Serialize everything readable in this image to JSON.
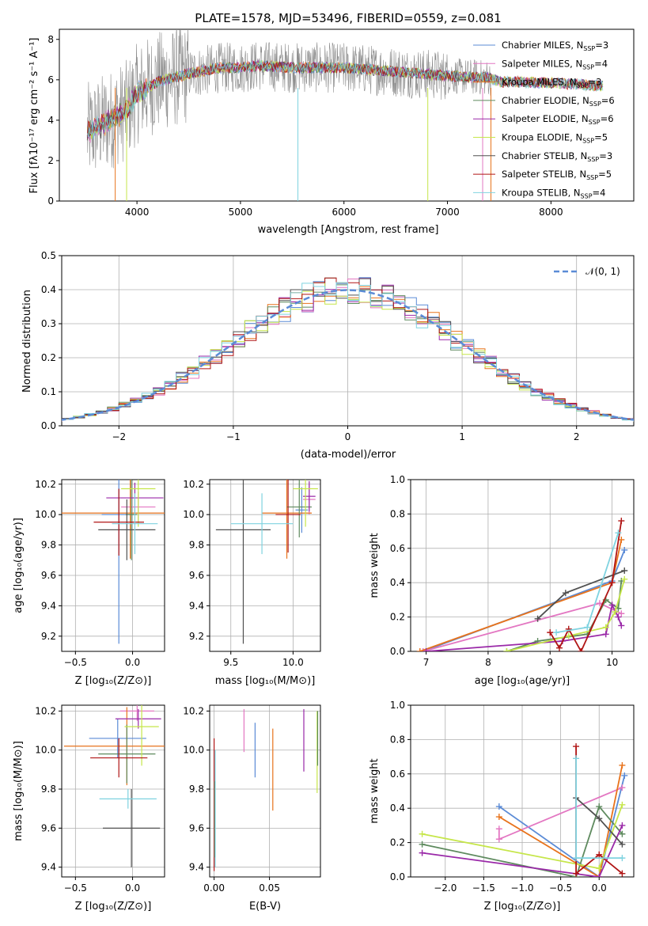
{
  "colors": {
    "chabrier_miles": "#5b8bd6",
    "salpeter_miles": "#e377c2",
    "kroupa_miles": "#e8731c",
    "chabrier_elodie": "#5e8a5e",
    "salpeter_elodie": "#9a29a8",
    "kroupa_elodie": "#c6e64a",
    "chabrier_stelib": "#505050",
    "salpeter_stelib": "#b01515",
    "kroupa_stelib": "#7fd3e0",
    "model_gray": "#8c8c8c",
    "gauss": "#5b8bd6"
  },
  "legend": [
    {
      "label": "Chabrier MILES, N",
      "sub": "SSP",
      "tail": "=3",
      "color": "#5b8bd6"
    },
    {
      "label": "Salpeter MILES, N",
      "sub": "SSP",
      "tail": "=4",
      "color": "#e377c2"
    },
    {
      "label": "Kroupa MILES, N",
      "sub": "SSP",
      "tail": "=3",
      "color": "#e8731c"
    },
    {
      "label": "Chabrier ELODIE, N",
      "sub": "SSP",
      "tail": "=6",
      "color": "#5e8a5e"
    },
    {
      "label": "Salpeter ELODIE, N",
      "sub": "SSP",
      "tail": "=6",
      "color": "#9a29a8"
    },
    {
      "label": "Kroupa ELODIE, N",
      "sub": "SSP",
      "tail": "=5",
      "color": "#c6e64a"
    },
    {
      "label": "Chabrier STELIB, N",
      "sub": "SSP",
      "tail": "=3",
      "color": "#505050"
    },
    {
      "label": "Salpeter STELIB, N",
      "sub": "SSP",
      "tail": "=5",
      "color": "#b01515"
    },
    {
      "label": "Kroupa STELIB, N",
      "sub": "SSP",
      "tail": "=4",
      "color": "#7fd3e0"
    }
  ],
  "chart_data": [
    {
      "type": "line",
      "title": "PLATE=1578, MJD=53496, FIBERID=0559, z=0.081",
      "xlabel": "wavelength [Angstrom, rest frame]",
      "ylabel": "Flux [fλ10⁻¹⁷ erg cm⁻² s⁻¹ A⁻¹]",
      "xlim": [
        3250,
        8800
      ],
      "ylim": [
        0,
        8.5
      ],
      "xticks": [
        "4000",
        "5000",
        "6000",
        "7000",
        "8000"
      ],
      "yticks": [
        "0",
        "2",
        "4",
        "6",
        "8"
      ],
      "continuum": [
        [
          3500,
          3.3
        ],
        [
          3700,
          3.9
        ],
        [
          3900,
          4.5
        ],
        [
          4000,
          5.3
        ],
        [
          4200,
          5.9
        ],
        [
          4500,
          6.3
        ],
        [
          4800,
          6.6
        ],
        [
          5000,
          6.6
        ],
        [
          5200,
          6.7
        ],
        [
          5500,
          6.6
        ],
        [
          6000,
          6.6
        ],
        [
          6500,
          6.4
        ],
        [
          7000,
          6.2
        ],
        [
          7400,
          6.1
        ],
        [
          7500,
          5.9
        ],
        [
          8000,
          5.85
        ],
        [
          8500,
          5.7
        ]
      ],
      "legend_position": "top-right"
    },
    {
      "type": "bar",
      "xlabel": "(data-model)/error",
      "ylabel": "Normed distribution",
      "xlim": [
        -2.5,
        2.5
      ],
      "ylim": [
        0,
        0.5
      ],
      "xticks": [
        "−2",
        "−1",
        "0",
        "1",
        "2"
      ],
      "yticks": [
        "0.0",
        "0.1",
        "0.2",
        "0.3",
        "0.4",
        "0.5"
      ],
      "legend_label": "𝒩(0, 1)",
      "legend_position": "top-right",
      "gaussian": {
        "mean": 0,
        "sigma": 1
      }
    },
    {
      "type": "scatter",
      "xlabel": "Z [log₁₀(Z/Z⊙)]",
      "ylabel": "age  [log₁₀(age/yr)]",
      "xlim": [
        -0.62,
        0.28
      ],
      "ylim": [
        9.1,
        10.23
      ],
      "xticks": [
        "−0.5",
        "0.0"
      ],
      "xtickvals": [
        -0.5,
        0.0
      ],
      "yticks": [
        "9.2",
        "9.4",
        "9.6",
        "9.8",
        "10.0",
        "10.2"
      ],
      "points": [
        {
          "x": -0.12,
          "y": 10.0,
          "xerr": 0.15,
          "yerr": 0.85,
          "c": "#5b8bd6"
        },
        {
          "x": 0.05,
          "y": 10.05,
          "xerr": 0.15,
          "yerr": 0.1,
          "c": "#e377c2"
        },
        {
          "x": -0.02,
          "y": 10.01,
          "xerr": 0.6,
          "yerr": 0.3,
          "c": "#e8731c"
        },
        {
          "x": -0.01,
          "y": 10.0,
          "xerr": 0.05,
          "yerr": 0.3,
          "c": "#5e8a5e"
        },
        {
          "x": 0.02,
          "y": 10.11,
          "xerr": 0.25,
          "yerr": 0.1,
          "c": "#9a29a8"
        },
        {
          "x": 0.05,
          "y": 10.17,
          "xerr": 0.15,
          "yerr": 0.25,
          "c": "#c6e64a"
        },
        {
          "x": -0.05,
          "y": 9.9,
          "xerr": 0.25,
          "yerr": 0.2,
          "c": "#505050"
        },
        {
          "x": -0.12,
          "y": 9.95,
          "xerr": 0.22,
          "yerr": 0.22,
          "c": "#b01515"
        },
        {
          "x": 0.02,
          "y": 9.94,
          "xerr": 0.2,
          "yerr": 0.2,
          "c": "#7fd3e0"
        }
      ]
    },
    {
      "type": "scatter",
      "xlabel": "mass [log₁₀(M/M⊙)]",
      "ylabel": "",
      "xlim": [
        9.33,
        10.22
      ],
      "ylim": [
        9.1,
        10.23
      ],
      "xticks": [
        "9.5",
        "10.0"
      ],
      "xtickvals": [
        9.5,
        10.0
      ],
      "yticks": [
        "9.2",
        "9.4",
        "9.6",
        "9.8",
        "10.0",
        "10.2"
      ],
      "points": [
        {
          "x": 10.07,
          "y": 10.03,
          "xerr": 0.05,
          "yerr": 0.15,
          "c": "#5b8bd6"
        },
        {
          "x": 10.13,
          "y": 10.1,
          "xerr": 0.05,
          "yerr": 0.1,
          "c": "#e377c2"
        },
        {
          "x": 9.95,
          "y": 10.01,
          "xerr": 0.2,
          "yerr": 0.3,
          "c": "#e8731c"
        },
        {
          "x": 10.05,
          "y": 10.05,
          "xerr": 0.1,
          "yerr": 0.2,
          "c": "#5e8a5e"
        },
        {
          "x": 10.13,
          "y": 10.12,
          "xerr": 0.05,
          "yerr": 0.1,
          "c": "#9a29a8"
        },
        {
          "x": 10.1,
          "y": 10.17,
          "xerr": 0.1,
          "yerr": 0.25,
          "c": "#c6e64a"
        },
        {
          "x": 9.6,
          "y": 9.9,
          "xerr": 0.22,
          "yerr": 0.75,
          "c": "#505050"
        },
        {
          "x": 9.96,
          "y": 10.0,
          "xerr": 0.1,
          "yerr": 0.25,
          "c": "#b01515"
        },
        {
          "x": 9.75,
          "y": 9.94,
          "xerr": 0.25,
          "yerr": 0.2,
          "c": "#7fd3e0"
        }
      ]
    },
    {
      "type": "line",
      "xlabel": "age  [log₁₀(age/yr)]",
      "ylabel": "mass weight",
      "xlim": [
        6.75,
        10.35
      ],
      "ylim": [
        0,
        1.0
      ],
      "xticks": [
        "7",
        "8",
        "9",
        "10"
      ],
      "xtickvals": [
        7,
        8,
        9,
        10
      ],
      "yticks": [
        "0.0",
        "0.2",
        "0.4",
        "0.6",
        "0.8",
        "1.0"
      ],
      "series": [
        {
          "c": "#5b8bd6",
          "pts": [
            [
              6.95,
              0.0
            ],
            [
              10.0,
              0.41
            ],
            [
              10.2,
              0.59
            ]
          ]
        },
        {
          "c": "#e377c2",
          "pts": [
            [
              6.95,
              0.0
            ],
            [
              9.8,
              0.28
            ],
            [
              10.15,
              0.22
            ]
          ]
        },
        {
          "c": "#e8731c",
          "pts": [
            [
              6.9,
              0.0
            ],
            [
              10.0,
              0.4
            ],
            [
              10.15,
              0.65
            ]
          ]
        },
        {
          "c": "#5e8a5e",
          "pts": [
            [
              8.3,
              0.0
            ],
            [
              8.8,
              0.06
            ],
            [
              9.6,
              0.1
            ],
            [
              9.9,
              0.3
            ],
            [
              10.1,
              0.25
            ],
            [
              10.15,
              0.41
            ]
          ]
        },
        {
          "c": "#9a29a8",
          "pts": [
            [
              7.0,
              0.0
            ],
            [
              9.2,
              0.06
            ],
            [
              9.9,
              0.1
            ],
            [
              10.0,
              0.27
            ],
            [
              10.1,
              0.2
            ],
            [
              10.15,
              0.15
            ]
          ]
        },
        {
          "c": "#c6e64a",
          "pts": [
            [
              8.3,
              0.0
            ],
            [
              9.3,
              0.09
            ],
            [
              9.9,
              0.14
            ],
            [
              10.05,
              0.23
            ],
            [
              10.2,
              0.42
            ]
          ]
        },
        {
          "c": "#505050",
          "pts": [
            [
              8.8,
              0.19
            ],
            [
              9.25,
              0.34
            ],
            [
              10.2,
              0.47
            ]
          ]
        },
        {
          "c": "#b01515",
          "pts": [
            [
              9.0,
              0.11
            ],
            [
              9.15,
              0.02
            ],
            [
              9.3,
              0.13
            ],
            [
              9.5,
              0.0
            ],
            [
              10.0,
              0.4
            ],
            [
              10.15,
              0.76
            ]
          ]
        },
        {
          "c": "#7fd3e0",
          "pts": [
            [
              9.1,
              0.11
            ],
            [
              9.6,
              0.14
            ],
            [
              10.1,
              0.69
            ]
          ]
        }
      ]
    },
    {
      "type": "scatter",
      "xlabel": "Z [log₁₀(Z/Z⊙)]",
      "ylabel": "mass [log₁₀(M/M⊙)]",
      "xlim": [
        -0.62,
        0.28
      ],
      "ylim": [
        9.35,
        10.23
      ],
      "xticks": [
        "−0.5",
        "0.0"
      ],
      "xtickvals": [
        -0.5,
        0.0
      ],
      "yticks": [
        "9.4",
        "9.6",
        "9.8",
        "10.0",
        "10.2"
      ],
      "points": [
        {
          "x": -0.13,
          "y": 10.06,
          "xerr": 0.25,
          "yerr": 0.1,
          "c": "#5b8bd6"
        },
        {
          "x": 0.04,
          "y": 10.2,
          "xerr": 0.15,
          "yerr": 0.05,
          "c": "#e377c2"
        },
        {
          "x": -0.05,
          "y": 10.02,
          "xerr": 0.55,
          "yerr": 0.2,
          "c": "#e8731c"
        },
        {
          "x": -0.05,
          "y": 9.98,
          "xerr": 0.25,
          "yerr": 0.15,
          "c": "#5e8a5e"
        },
        {
          "x": 0.05,
          "y": 10.16,
          "xerr": 0.2,
          "yerr": 0.05,
          "c": "#9a29a8"
        },
        {
          "x": 0.08,
          "y": 10.12,
          "xerr": 0.15,
          "yerr": 0.2,
          "c": "#c6e64a"
        },
        {
          "x": -0.01,
          "y": 9.6,
          "xerr": 0.25,
          "yerr": 0.2,
          "c": "#505050"
        },
        {
          "x": -0.12,
          "y": 9.96,
          "xerr": 0.25,
          "yerr": 0.1,
          "c": "#b01515"
        },
        {
          "x": -0.04,
          "y": 9.75,
          "xerr": 0.25,
          "yerr": 0.05,
          "c": "#7fd3e0"
        }
      ]
    },
    {
      "type": "scatter",
      "xlabel": "E(B-V)",
      "ylabel": "",
      "xlim": [
        -0.004,
        0.096
      ],
      "ylim": [
        9.35,
        10.23
      ],
      "xticks": [
        "0.00",
        "0.05"
      ],
      "xtickvals": [
        0.0,
        0.05
      ],
      "yticks": [
        "9.4",
        "9.6",
        "9.8",
        "10.0",
        "10.2"
      ],
      "vlines": [
        {
          "x": 0.0,
          "y0": 9.38,
          "y1": 10.06,
          "c": "#b01515"
        },
        {
          "x": 0.0005,
          "y0": 9.45,
          "y1": 9.84,
          "c": "#5e8a5e"
        },
        {
          "x": 0.001,
          "y0": 9.4,
          "y1": 10.0,
          "c": "#7fd3e0"
        },
        {
          "x": 0.027,
          "y0": 9.99,
          "y1": 10.21,
          "c": "#e377c2"
        },
        {
          "x": 0.037,
          "y0": 9.86,
          "y1": 10.14,
          "c": "#5b8bd6"
        },
        {
          "x": 0.053,
          "y0": 9.69,
          "y1": 10.11,
          "c": "#e8731c"
        },
        {
          "x": 0.081,
          "y0": 9.89,
          "y1": 10.21,
          "c": "#9a29a8"
        },
        {
          "x": 0.093,
          "y0": 9.78,
          "y1": 10.2,
          "c": "#c6e64a"
        },
        {
          "x": 0.0935,
          "y0": 9.92,
          "y1": 10.2,
          "c": "#5e8a5e"
        }
      ]
    },
    {
      "type": "line",
      "xlabel": "Z [log₁₀(Z/Z⊙)]",
      "ylabel": "mass weight",
      "xlim": [
        -2.45,
        0.45
      ],
      "ylim": [
        0,
        1.0
      ],
      "xticks": [
        "−2.0",
        "−1.5",
        "−1.0",
        "−0.5",
        "0.0"
      ],
      "xtickvals": [
        -2.0,
        -1.5,
        -1.0,
        -0.5,
        0.0
      ],
      "yticks": [
        "0.0",
        "0.2",
        "0.4",
        "0.6",
        "0.8",
        "1.0"
      ],
      "series": [
        {
          "c": "#5b8bd6",
          "pts": [
            [
              -1.3,
              0.41
            ],
            [
              0.0,
              0.0
            ],
            [
              0.33,
              0.59
            ]
          ]
        },
        {
          "c": "#e377c2",
          "pts": [
            [
              -1.3,
              0.28
            ],
            [
              -1.3,
              0.22
            ],
            [
              0.3,
              0.52
            ]
          ]
        },
        {
          "c": "#e8731c",
          "pts": [
            [
              -1.3,
              0.35
            ],
            [
              0.0,
              0.0
            ],
            [
              0.3,
              0.65
            ]
          ]
        },
        {
          "c": "#5e8a5e",
          "pts": [
            [
              -2.3,
              0.19
            ],
            [
              -0.3,
              0.0
            ],
            [
              0.0,
              0.41
            ],
            [
              0.3,
              0.25
            ]
          ]
        },
        {
          "c": "#9a29a8",
          "pts": [
            [
              -2.3,
              0.14
            ],
            [
              0.0,
              0.0
            ],
            [
              0.3,
              0.3
            ]
          ]
        },
        {
          "c": "#c6e64a",
          "pts": [
            [
              -2.3,
              0.25
            ],
            [
              0.0,
              0.05
            ],
            [
              0.3,
              0.42
            ]
          ]
        },
        {
          "c": "#505050",
          "pts": [
            [
              -0.3,
              0.46
            ],
            [
              0.0,
              0.34
            ],
            [
              0.3,
              0.19
            ]
          ]
        },
        {
          "c": "#b01515",
          "pts": [
            [
              -0.3,
              0.76
            ],
            [
              -0.3,
              0.02
            ],
            [
              0.0,
              0.13
            ],
            [
              0.3,
              0.02
            ]
          ]
        },
        {
          "c": "#7fd3e0",
          "pts": [
            [
              -0.3,
              0.69
            ],
            [
              -0.3,
              0.11
            ],
            [
              0.3,
              0.11
            ]
          ]
        }
      ]
    }
  ]
}
